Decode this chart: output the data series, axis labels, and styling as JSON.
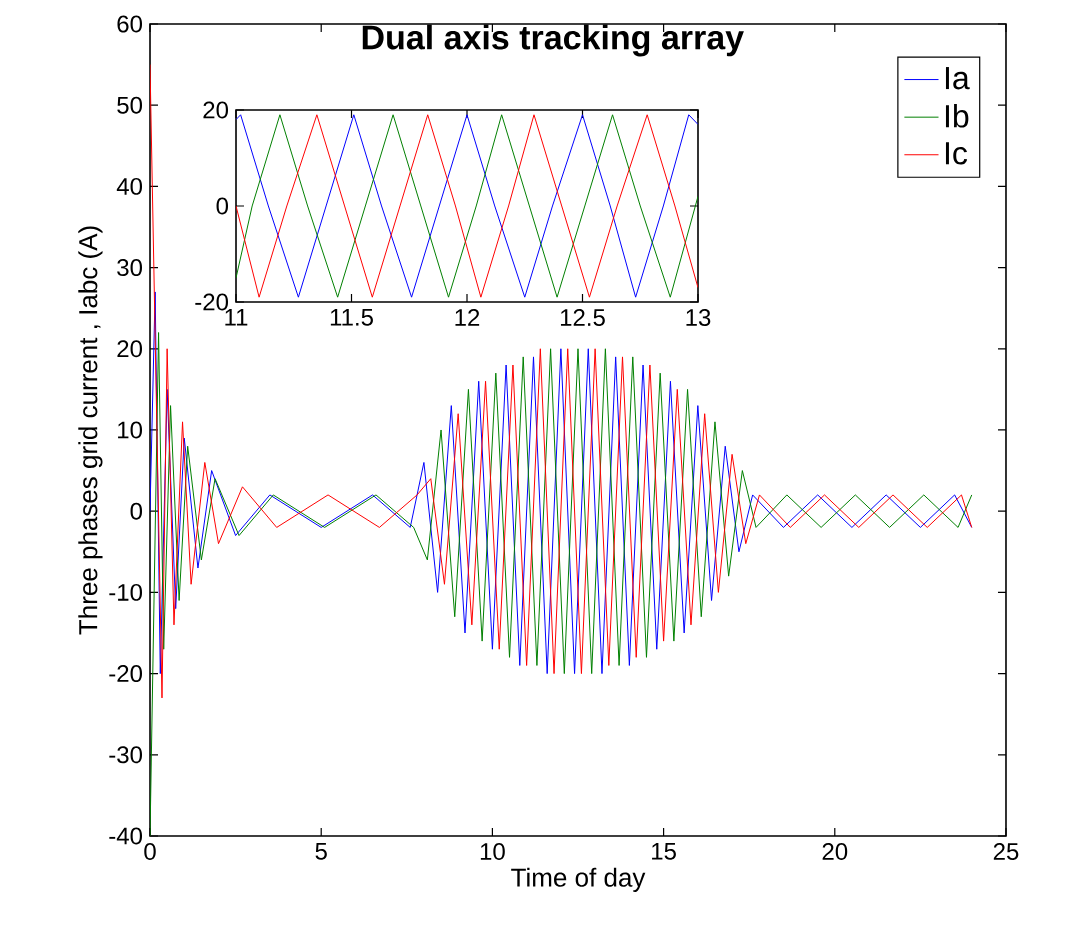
{
  "chart_data": [
    {
      "type": "line",
      "title": "Dual axis tracking array",
      "xlabel": "Time of day",
      "ylabel": "Three phases grid current , Iabc (A)",
      "xlim": [
        0,
        25
      ],
      "ylim": [
        -40,
        60
      ],
      "xticks": [
        0,
        5,
        10,
        15,
        20,
        25
      ],
      "yticks": [
        -40,
        -30,
        -20,
        -10,
        0,
        10,
        20,
        30,
        40,
        50,
        60
      ],
      "legend": "top right",
      "series": [
        {
          "name": "Ia",
          "color": "#0000ff",
          "x": [
            0,
            0.15,
            0.3,
            0.5,
            0.75,
            1.0,
            1.4,
            1.8,
            2.5,
            3.5,
            5,
            6.5,
            7.6,
            8.0,
            8.4,
            8.8,
            9.2,
            9.6,
            10.0,
            10.4,
            10.8,
            11.2,
            11.6,
            12.0,
            12.4,
            12.8,
            13.2,
            13.6,
            14.0,
            14.4,
            14.8,
            15.2,
            15.6,
            16.0,
            16.4,
            16.8,
            17.2,
            17.6,
            18.5,
            19.5,
            20.5,
            21.5,
            22.5,
            23.5,
            24
          ],
          "values": [
            0,
            27,
            -20,
            15,
            -12,
            9,
            -7,
            5,
            -3,
            2,
            -2,
            2,
            -2,
            6,
            -10,
            13,
            -15,
            16,
            -17,
            18,
            -19,
            19,
            -20,
            20,
            -20,
            20,
            -20,
            19,
            -19,
            18,
            -17,
            16,
            -15,
            13,
            -11,
            8,
            -5,
            2,
            -2,
            2,
            -2,
            2,
            -2,
            2,
            -2
          ]
        },
        {
          "name": "Ib",
          "color": "#008000",
          "x": [
            0,
            0.25,
            0.4,
            0.6,
            0.85,
            1.1,
            1.5,
            1.9,
            2.6,
            3.6,
            5.1,
            6.6,
            7.7,
            8.1,
            8.5,
            8.9,
            9.3,
            9.7,
            10.1,
            10.5,
            10.9,
            11.3,
            11.7,
            12.1,
            12.5,
            12.9,
            13.3,
            13.7,
            14.1,
            14.5,
            14.9,
            15.3,
            15.7,
            16.1,
            16.5,
            16.9,
            17.3,
            17.7,
            18.6,
            19.6,
            20.6,
            21.6,
            22.6,
            23.6,
            24
          ],
          "values": [
            -40,
            22,
            -17,
            13,
            -11,
            8,
            -6,
            4,
            -3,
            2,
            -2,
            2,
            -2,
            -6,
            10,
            -13,
            15,
            -16,
            17,
            -18,
            19,
            -19,
            20,
            -20,
            20,
            -20,
            20,
            -19,
            19,
            -18,
            17,
            -16,
            15,
            -13,
            11,
            -8,
            5,
            -2,
            2,
            -2,
            2,
            -2,
            2,
            -2,
            2
          ]
        },
        {
          "name": "Ic",
          "color": "#ff0000",
          "x": [
            0,
            0.35,
            0.5,
            0.7,
            0.95,
            1.2,
            1.6,
            2.0,
            2.7,
            3.7,
            5.2,
            6.7,
            7.8,
            8.2,
            8.6,
            9.0,
            9.4,
            9.8,
            10.2,
            10.6,
            11.0,
            11.4,
            11.8,
            12.2,
            12.6,
            13.0,
            13.4,
            13.8,
            14.2,
            14.6,
            15.0,
            15.4,
            15.8,
            16.2,
            16.6,
            17.0,
            17.4,
            17.8,
            18.7,
            19.7,
            20.7,
            21.7,
            22.7,
            23.7,
            24
          ],
          "values": [
            55,
            -23,
            20,
            -14,
            11,
            -9,
            6,
            -4,
            3,
            -2,
            2,
            -2,
            2,
            4,
            -9,
            12,
            -14,
            16,
            -17,
            18,
            -19,
            20,
            -20,
            20,
            -20,
            20,
            -19,
            19,
            -18,
            18,
            -16,
            15,
            -14,
            12,
            -10,
            7,
            -4,
            2,
            -2,
            2,
            -2,
            2,
            -2,
            2,
            -2
          ]
        }
      ]
    },
    {
      "type": "line",
      "xlim": [
        11,
        13
      ],
      "ylim": [
        -20,
        20
      ],
      "xticks": [
        11,
        11.5,
        12,
        12.5,
        13
      ],
      "yticks": [
        -20,
        0,
        20
      ],
      "series": [
        {
          "color": "#0000ff",
          "x": [
            11,
            11.02,
            11.14,
            11.27,
            11.39,
            11.51,
            11.63,
            11.76,
            11.88,
            12.0,
            12.12,
            12.25,
            12.37,
            12.5,
            12.62,
            12.73,
            12.85,
            12.96,
            13
          ],
          "values": [
            18,
            19,
            0,
            -19,
            0,
            19,
            0,
            -19,
            0,
            19,
            0,
            -19,
            0,
            19,
            0,
            -19,
            0,
            19,
            17
          ]
        },
        {
          "color": "#008000",
          "x": [
            11,
            11.07,
            11.19,
            11.31,
            11.44,
            11.56,
            11.68,
            11.8,
            11.92,
            12.04,
            12.15,
            12.27,
            12.39,
            12.51,
            12.63,
            12.75,
            12.88,
            13
          ],
          "values": [
            -15,
            0,
            19,
            0,
            -19,
            0,
            19,
            0,
            -19,
            0,
            19,
            0,
            -19,
            0,
            19,
            0,
            -19,
            2
          ]
        },
        {
          "color": "#ff0000",
          "x": [
            11,
            11.1,
            11.22,
            11.35,
            11.47,
            11.59,
            11.71,
            11.83,
            11.95,
            12.06,
            12.18,
            12.29,
            12.41,
            12.53,
            12.65,
            12.78,
            12.9,
            13
          ],
          "values": [
            0,
            -19,
            0,
            19,
            0,
            -19,
            0,
            19,
            0,
            -19,
            0,
            19,
            0,
            -19,
            0,
            19,
            0,
            -17
          ]
        }
      ]
    }
  ]
}
